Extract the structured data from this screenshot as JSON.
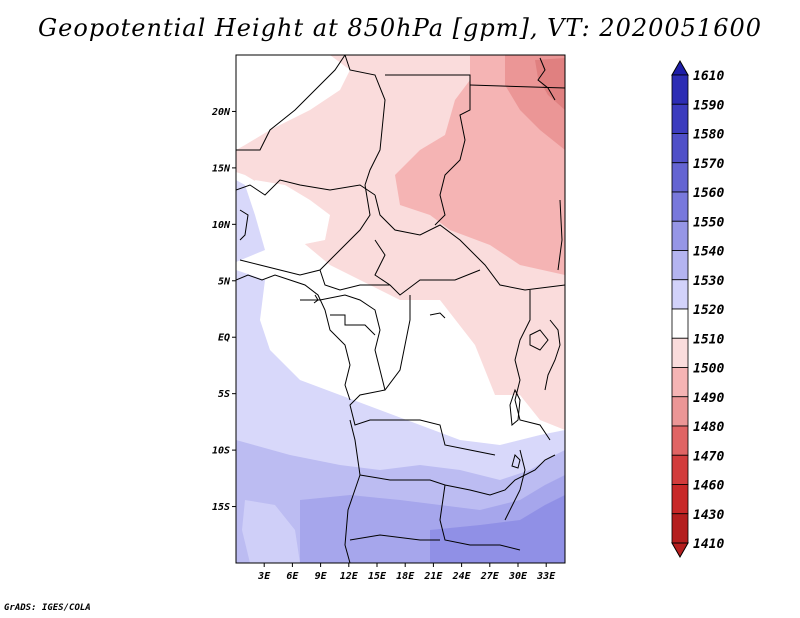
{
  "title": "Geopotential Height at 850hPa [gpm], VT: 2020051600",
  "credit": "GrADS: IGES/COLA",
  "map": {
    "lat_labels": [
      "20N",
      "15N",
      "10N",
      "5N",
      "EQ",
      "5S",
      "10S",
      "15S"
    ],
    "lat_values": [
      20,
      15,
      10,
      5,
      0,
      -5,
      -10,
      -15
    ],
    "lon_labels": [
      "3E",
      "6E",
      "9E",
      "12E",
      "15E",
      "18E",
      "21E",
      "24E",
      "27E",
      "30E",
      "33E"
    ],
    "lon_values": [
      3,
      6,
      9,
      12,
      15,
      18,
      21,
      24,
      27,
      30,
      33
    ],
    "lon_range": [
      0,
      35
    ],
    "lat_range": [
      -20,
      25
    ]
  },
  "colorbar": {
    "levels": [
      "1610",
      "1590",
      "1580",
      "1570",
      "1560",
      "1550",
      "1540",
      "1530",
      "1520",
      "1510",
      "1500",
      "1490",
      "1480",
      "1470",
      "1460",
      "1430",
      "1410"
    ],
    "colors": [
      "#1e1ea8",
      "#2d2db4",
      "#3c3cbe",
      "#5050c8",
      "#6464d2",
      "#7878dc",
      "#9696e6",
      "#b4b4f0",
      "#d2d2fa",
      "#ffffff",
      "#fadcdc",
      "#f5b4b4",
      "#eb9696",
      "#e06464",
      "#d23c3c",
      "#c82828",
      "#b41e1e"
    ]
  }
}
